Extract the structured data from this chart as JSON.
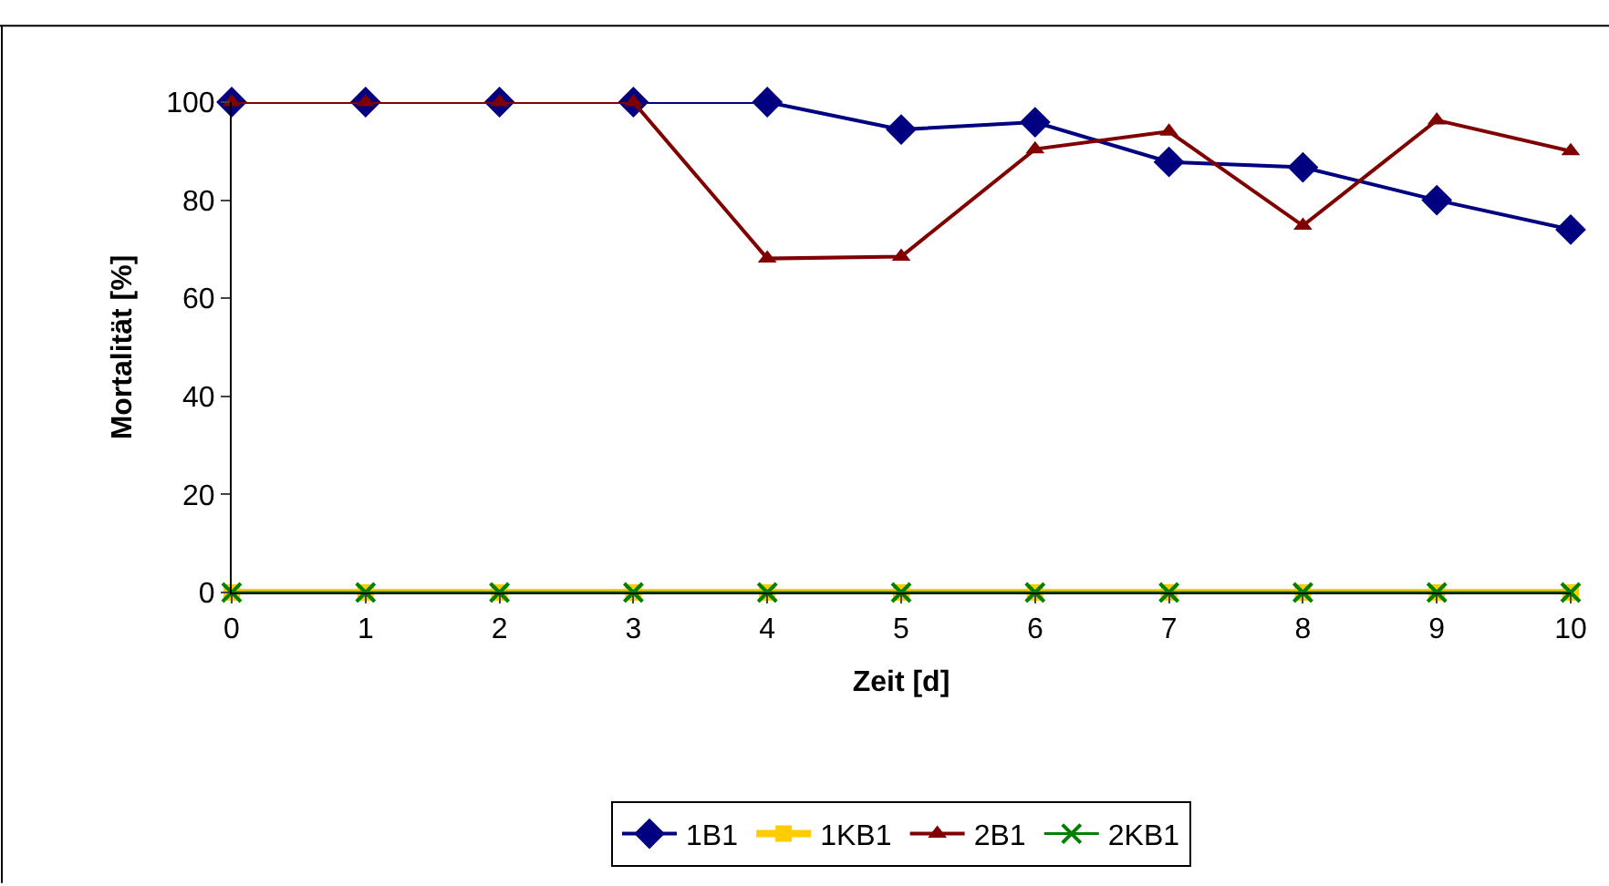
{
  "chart_data": {
    "type": "line",
    "xlabel": "Zeit [d]",
    "ylabel": "Mortalität [%]",
    "x": [
      0,
      1,
      2,
      3,
      4,
      5,
      6,
      7,
      8,
      9,
      10
    ],
    "series": [
      {
        "name": "1B1",
        "color": "#000080",
        "marker": "diamond",
        "values": [
          100,
          100,
          100,
          100,
          100,
          94.4,
          95.9,
          87.8,
          86.7,
          80,
          74
        ]
      },
      {
        "name": "1KB1",
        "color": "#ffcc00",
        "marker": "square",
        "values": [
          0,
          0,
          0,
          0,
          0,
          0,
          0,
          0,
          0,
          0,
          0
        ]
      },
      {
        "name": "2B1",
        "color": "#800000",
        "marker": "triangle",
        "values": [
          100,
          100,
          100,
          100,
          68.1,
          68.5,
          90.4,
          94,
          74.8,
          96.3,
          90
        ]
      },
      {
        "name": "2KB1",
        "color": "#008000",
        "marker": "cross",
        "values": [
          0,
          0,
          0,
          0,
          0,
          0,
          0,
          0,
          0,
          0,
          0
        ]
      }
    ],
    "xlim": [
      0,
      10
    ],
    "xticks": [
      0,
      1,
      2,
      3,
      4,
      5,
      6,
      7,
      8,
      9,
      10
    ],
    "ylim": [
      0,
      100
    ],
    "yticks": [
      0,
      20,
      40,
      60,
      80,
      100
    ],
    "grid": false,
    "legend": "bottom",
    "line_style": "solid"
  }
}
